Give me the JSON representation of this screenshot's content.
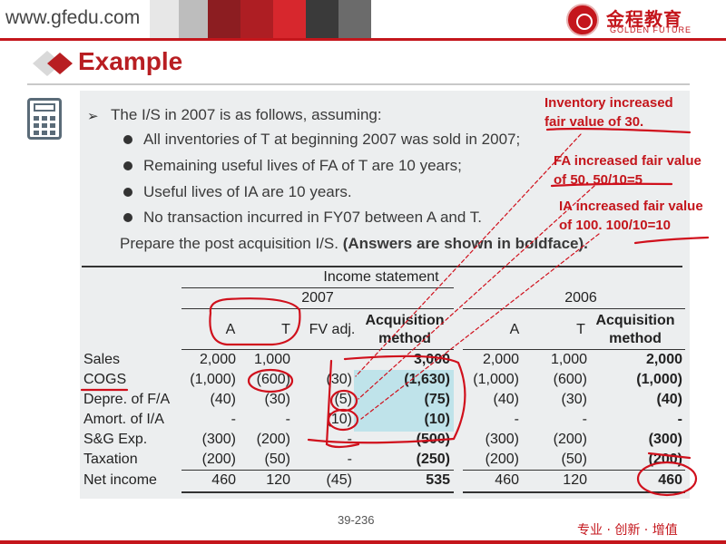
{
  "header": {
    "url": "www.gfedu.com",
    "logo_cn": "金程教育",
    "logo_en": "GOLDEN FUTURE",
    "stripe_colors": [
      "#e7e7e7",
      "#bdbdbd",
      "#8c1d21",
      "#ae1e23",
      "#d7272d",
      "#3a3a3a",
      "#6b6b6b"
    ]
  },
  "title": "Example",
  "intro": {
    "lead": "The I/S in 2007 is as follows, assuming:",
    "bullets": [
      "All inventories of T at beginning 2007 was sold in 2007;",
      "Remaining useful lives of FA of T are 10 years;",
      "Useful lives of IA are 10 years.",
      "No transaction incurred in FY07 between A and T."
    ],
    "prepare": "Prepare the post acquisition I/S.",
    "prepare_bold": "(Answers are shown in boldface)."
  },
  "table": {
    "group_header": "Income statement",
    "year_2007": "2007",
    "year_2006": "2006",
    "col_A": "A",
    "col_T": "T",
    "col_fv": "FV adj.",
    "col_acq_1": "Acquisition",
    "col_acq_2": "method",
    "col_A_2006": "A",
    "col_T_2006": "T",
    "col_acq2006_1": "Acquisition",
    "col_acq2006_2": "method",
    "rows": [
      {
        "label": "Sales",
        "a": "2,000",
        "t": "1,000",
        "fv": "",
        "acq": "3,000",
        "a6": "2,000",
        "t6": "1,000",
        "acq6": "2,000"
      },
      {
        "label": "COGS",
        "a": "(1,000)",
        "t": "(600)",
        "fv": "(30)",
        "acq": "(1,630)",
        "a6": "(1,000)",
        "t6": "(600)",
        "acq6": "(1,000)"
      },
      {
        "label": "Depre. of F/A",
        "a": "(40)",
        "t": "(30)",
        "fv": "(5)",
        "acq": "(75)",
        "a6": "(40)",
        "t6": "(30)",
        "acq6": "(40)"
      },
      {
        "label": "Amort. of I/A",
        "a": "-",
        "t": "-",
        "fv": "(10)",
        "acq": "(10)",
        "a6": "-",
        "t6": "-",
        "acq6": "-"
      },
      {
        "label": "S&G Exp.",
        "a": "(300)",
        "t": "(200)",
        "fv": "-",
        "acq": "(500)",
        "a6": "(300)",
        "t6": "(200)",
        "acq6": "(300)"
      },
      {
        "label": "Taxation",
        "a": "(200)",
        "t": "(50)",
        "fv": "-",
        "acq": "(250)",
        "a6": "(200)",
        "t6": "(50)",
        "acq6": "(200)"
      },
      {
        "label": "Net income",
        "a": "460",
        "t": "120",
        "fv": "(45)",
        "acq": "535",
        "a6": "460",
        "t6": "120",
        "acq6": "460"
      }
    ]
  },
  "annotations": {
    "inv_1": "Inventory increased",
    "inv_2": "fair value of 30.",
    "fa_1": "FA increased fair value",
    "fa_2": "of 50.  50/10=5",
    "ia_1": "IA increased fair value",
    "ia_2": "of 100. 100/10=10"
  },
  "footer": {
    "page": "39-236",
    "slogan": "专业 · 创新 · 增值"
  }
}
